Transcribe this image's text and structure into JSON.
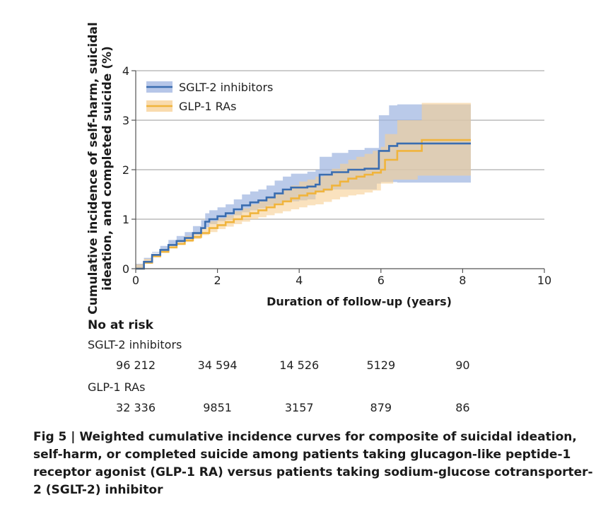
{
  "chart_data": {
    "type": "line",
    "ylabel_lines": [
      "Cumulative incidence of self-harm, suicidal",
      "ideation, and completed suicide (%)"
    ],
    "xlabel": "Duration of follow-up (years)",
    "xlim": [
      0,
      10
    ],
    "ylim": [
      0,
      4
    ],
    "xticks": [
      0,
      2,
      4,
      6,
      8,
      10
    ],
    "yticks": [
      0,
      1,
      2,
      3,
      4
    ],
    "grid": true,
    "legend_position": "top-left",
    "series": [
      {
        "name": "SGLT-2 inhibitors",
        "color": "#3a6db0",
        "band_color": "#9db3e0",
        "points": [
          [
            0,
            0
          ],
          [
            0.2,
            0.14
          ],
          [
            0.4,
            0.28
          ],
          [
            0.6,
            0.38
          ],
          [
            0.8,
            0.48
          ],
          [
            1.0,
            0.56
          ],
          [
            1.2,
            0.62
          ],
          [
            1.4,
            0.72
          ],
          [
            1.6,
            0.82
          ],
          [
            1.7,
            0.95
          ],
          [
            1.8,
            1.0
          ],
          [
            2.0,
            1.06
          ],
          [
            2.2,
            1.12
          ],
          [
            2.4,
            1.2
          ],
          [
            2.6,
            1.28
          ],
          [
            2.8,
            1.34
          ],
          [
            3.0,
            1.38
          ],
          [
            3.2,
            1.44
          ],
          [
            3.4,
            1.52
          ],
          [
            3.6,
            1.6
          ],
          [
            3.8,
            1.64
          ],
          [
            4.0,
            1.64
          ],
          [
            4.2,
            1.66
          ],
          [
            4.4,
            1.7
          ],
          [
            4.5,
            1.9
          ],
          [
            4.8,
            1.95
          ],
          [
            5.2,
            2.0
          ],
          [
            5.6,
            2.02
          ],
          [
            5.9,
            2.02
          ],
          [
            5.95,
            2.38
          ],
          [
            6.2,
            2.48
          ],
          [
            6.4,
            2.53
          ],
          [
            7.0,
            2.53
          ],
          [
            8.2,
            2.53
          ]
        ],
        "lower": [
          [
            0,
            0
          ],
          [
            0.2,
            0.1
          ],
          [
            0.4,
            0.22
          ],
          [
            0.6,
            0.32
          ],
          [
            0.8,
            0.4
          ],
          [
            1.0,
            0.47
          ],
          [
            1.2,
            0.53
          ],
          [
            1.4,
            0.6
          ],
          [
            1.6,
            0.68
          ],
          [
            1.8,
            0.84
          ],
          [
            2.0,
            0.9
          ],
          [
            2.2,
            0.96
          ],
          [
            2.4,
            1.02
          ],
          [
            2.6,
            1.08
          ],
          [
            2.8,
            1.14
          ],
          [
            3.0,
            1.18
          ],
          [
            3.2,
            1.22
          ],
          [
            3.4,
            1.27
          ],
          [
            3.6,
            1.32
          ],
          [
            3.8,
            1.36
          ],
          [
            4.0,
            1.36
          ],
          [
            4.2,
            1.38
          ],
          [
            4.4,
            1.4
          ],
          [
            4.5,
            1.54
          ],
          [
            4.8,
            1.57
          ],
          [
            5.2,
            1.6
          ],
          [
            5.6,
            1.6
          ],
          [
            5.9,
            1.6
          ],
          [
            6.0,
            1.72
          ],
          [
            6.4,
            1.75
          ],
          [
            7.0,
            1.74
          ],
          [
            8.2,
            1.74
          ]
        ],
        "upper": [
          [
            0,
            0
          ],
          [
            0.2,
            0.18
          ],
          [
            0.4,
            0.34
          ],
          [
            0.6,
            0.46
          ],
          [
            0.8,
            0.58
          ],
          [
            1.0,
            0.66
          ],
          [
            1.2,
            0.74
          ],
          [
            1.4,
            0.86
          ],
          [
            1.6,
            0.98
          ],
          [
            1.7,
            1.12
          ],
          [
            1.8,
            1.18
          ],
          [
            2.0,
            1.24
          ],
          [
            2.2,
            1.3
          ],
          [
            2.4,
            1.4
          ],
          [
            2.6,
            1.5
          ],
          [
            2.8,
            1.56
          ],
          [
            3.0,
            1.6
          ],
          [
            3.2,
            1.68
          ],
          [
            3.4,
            1.78
          ],
          [
            3.6,
            1.86
          ],
          [
            3.8,
            1.92
          ],
          [
            4.0,
            1.92
          ],
          [
            4.2,
            1.96
          ],
          [
            4.4,
            2.0
          ],
          [
            4.5,
            2.26
          ],
          [
            4.8,
            2.34
          ],
          [
            5.2,
            2.4
          ],
          [
            5.6,
            2.44
          ],
          [
            5.9,
            2.44
          ],
          [
            5.95,
            3.1
          ],
          [
            6.2,
            3.3
          ],
          [
            6.4,
            3.32
          ],
          [
            7.0,
            3.32
          ],
          [
            8.2,
            3.32
          ]
        ]
      },
      {
        "name": "GLP-1 RAs",
        "color": "#f0b43c",
        "band_color": "#f7cf93",
        "points": [
          [
            0,
            0
          ],
          [
            0.2,
            0.12
          ],
          [
            0.4,
            0.25
          ],
          [
            0.6,
            0.34
          ],
          [
            0.8,
            0.43
          ],
          [
            1.0,
            0.5
          ],
          [
            1.2,
            0.57
          ],
          [
            1.4,
            0.64
          ],
          [
            1.6,
            0.72
          ],
          [
            1.8,
            0.82
          ],
          [
            2.0,
            0.88
          ],
          [
            2.2,
            0.94
          ],
          [
            2.4,
            1.0
          ],
          [
            2.6,
            1.06
          ],
          [
            2.8,
            1.12
          ],
          [
            3.0,
            1.18
          ],
          [
            3.2,
            1.24
          ],
          [
            3.4,
            1.3
          ],
          [
            3.6,
            1.36
          ],
          [
            3.8,
            1.42
          ],
          [
            4.0,
            1.48
          ],
          [
            4.2,
            1.52
          ],
          [
            4.4,
            1.56
          ],
          [
            4.6,
            1.6
          ],
          [
            4.8,
            1.68
          ],
          [
            5.0,
            1.76
          ],
          [
            5.2,
            1.82
          ],
          [
            5.4,
            1.86
          ],
          [
            5.6,
            1.9
          ],
          [
            5.8,
            1.94
          ],
          [
            6.0,
            2.0
          ],
          [
            6.1,
            2.2
          ],
          [
            6.3,
            2.2
          ],
          [
            6.4,
            2.38
          ],
          [
            6.9,
            2.38
          ],
          [
            7.0,
            2.6
          ],
          [
            8.2,
            2.6
          ]
        ],
        "lower": [
          [
            0,
            0
          ],
          [
            0.2,
            0.09
          ],
          [
            0.4,
            0.2
          ],
          [
            0.6,
            0.28
          ],
          [
            0.8,
            0.36
          ],
          [
            1.0,
            0.42
          ],
          [
            1.2,
            0.48
          ],
          [
            1.4,
            0.54
          ],
          [
            1.6,
            0.6
          ],
          [
            1.8,
            0.68
          ],
          [
            2.0,
            0.74
          ],
          [
            2.2,
            0.8
          ],
          [
            2.4,
            0.85
          ],
          [
            2.6,
            0.9
          ],
          [
            2.8,
            0.95
          ],
          [
            3.0,
            1.0
          ],
          [
            3.2,
            1.04
          ],
          [
            3.4,
            1.08
          ],
          [
            3.6,
            1.12
          ],
          [
            3.8,
            1.16
          ],
          [
            4.0,
            1.2
          ],
          [
            4.2,
            1.24
          ],
          [
            4.4,
            1.28
          ],
          [
            4.6,
            1.3
          ],
          [
            4.8,
            1.35
          ],
          [
            5.0,
            1.4
          ],
          [
            5.2,
            1.45
          ],
          [
            5.4,
            1.48
          ],
          [
            5.6,
            1.5
          ],
          [
            5.8,
            1.54
          ],
          [
            6.0,
            1.58
          ],
          [
            6.1,
            1.72
          ],
          [
            6.3,
            1.72
          ],
          [
            6.4,
            1.8
          ],
          [
            6.9,
            1.8
          ],
          [
            7.0,
            1.88
          ],
          [
            8.2,
            1.88
          ]
        ],
        "upper": [
          [
            0,
            0
          ],
          [
            0.2,
            0.15
          ],
          [
            0.4,
            0.3
          ],
          [
            0.6,
            0.4
          ],
          [
            0.8,
            0.5
          ],
          [
            1.0,
            0.58
          ],
          [
            1.2,
            0.66
          ],
          [
            1.4,
            0.74
          ],
          [
            1.6,
            0.84
          ],
          [
            1.8,
            0.96
          ],
          [
            2.0,
            1.02
          ],
          [
            2.2,
            1.08
          ],
          [
            2.4,
            1.16
          ],
          [
            2.6,
            1.22
          ],
          [
            2.8,
            1.3
          ],
          [
            3.0,
            1.36
          ],
          [
            3.2,
            1.44
          ],
          [
            3.4,
            1.52
          ],
          [
            3.6,
            1.6
          ],
          [
            3.8,
            1.68
          ],
          [
            4.0,
            1.76
          ],
          [
            4.2,
            1.8
          ],
          [
            4.4,
            1.86
          ],
          [
            4.6,
            1.92
          ],
          [
            4.8,
            2.02
          ],
          [
            5.0,
            2.12
          ],
          [
            5.2,
            2.2
          ],
          [
            5.4,
            2.26
          ],
          [
            5.6,
            2.32
          ],
          [
            5.8,
            2.38
          ],
          [
            6.0,
            2.46
          ],
          [
            6.1,
            2.72
          ],
          [
            6.3,
            2.72
          ],
          [
            6.4,
            3.0
          ],
          [
            6.9,
            3.0
          ],
          [
            7.0,
            3.35
          ],
          [
            8.2,
            3.35
          ]
        ]
      }
    ]
  },
  "risk_table": {
    "title": "No at risk",
    "groups": [
      {
        "name": "SGLT-2 inhibitors",
        "values": [
          "96 212",
          "34 594",
          "14 526",
          "5129",
          "90"
        ]
      },
      {
        "name": "GLP-1 RAs",
        "values": [
          "32 336",
          "9851",
          "3157",
          "879",
          "86"
        ]
      }
    ],
    "timepoints": [
      0,
      2,
      4,
      6,
      8
    ]
  },
  "caption": "Fig 5 | Weighted cumulative incidence curves for composite of suicidal ideation, self-harm, or completed suicide among patients taking glucagon-like peptide-1 receptor agonist (GLP-1 RA) versus patients taking sodium-glucose cotransporter-2 (SGLT-2) inhibitor"
}
